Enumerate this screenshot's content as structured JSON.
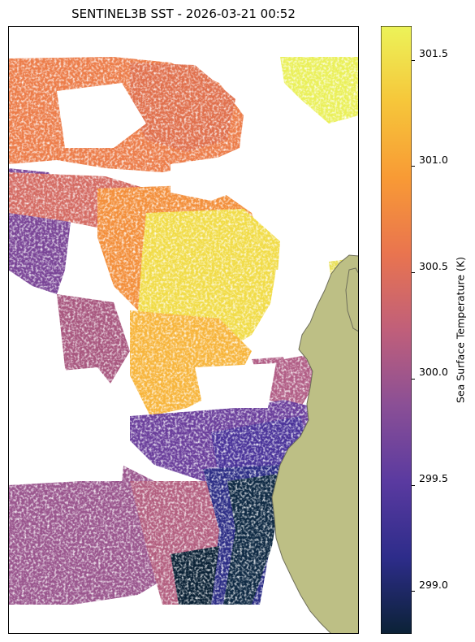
{
  "title": "SENTINEL3B SST - 2026-03-21 00:52",
  "colorbar": {
    "label": "Sea Surface Temperature (K)",
    "min": 298.77,
    "max": 301.63,
    "ticks": [
      "299.0",
      "299.5",
      "300.0",
      "300.5",
      "301.0",
      "301.5"
    ],
    "tick_values": [
      299.0,
      299.5,
      300.0,
      300.5,
      301.0,
      301.5
    ],
    "colormap": [
      "#0b2236",
      "#2d2c8a",
      "#5a3aa0",
      "#8a4f96",
      "#c05f7a",
      "#e9744f",
      "#f89a35",
      "#f6c63a",
      "#ecf359"
    ]
  },
  "colors": {
    "land": "#bdbf85",
    "coast": "#6e6e5a",
    "nodata": "#ffffff"
  }
}
